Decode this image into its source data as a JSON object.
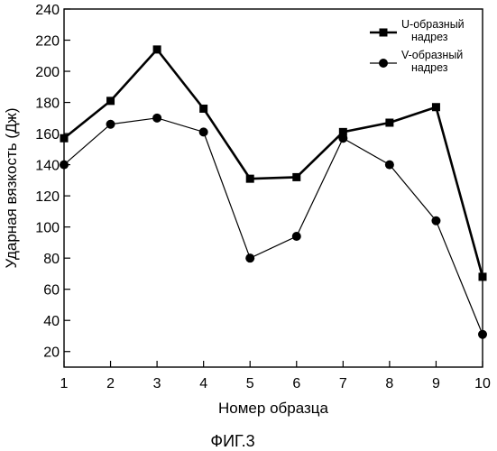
{
  "figure": {
    "caption": "ФИГ.3"
  },
  "chart_data": {
    "type": "line",
    "title": "",
    "xlabel": "Номер образца",
    "ylabel": "Ударная вязкость (Дж)",
    "x": [
      1,
      2,
      3,
      4,
      5,
      6,
      7,
      8,
      9,
      10
    ],
    "xlim": [
      1,
      10
    ],
    "ylim": [
      10,
      240
    ],
    "yticks": [
      20,
      40,
      60,
      80,
      100,
      120,
      140,
      160,
      180,
      200,
      220,
      240
    ],
    "xticks": [
      1,
      2,
      3,
      4,
      5,
      6,
      7,
      8,
      9,
      10
    ],
    "grid": false,
    "legend_position": "top-right",
    "series": [
      {
        "name": "U-образный надрез",
        "legend_lines": [
          "U-образный",
          "надрез"
        ],
        "marker": "square",
        "color": "#000000",
        "values": [
          157,
          181,
          214,
          176,
          131,
          132,
          161,
          167,
          177,
          68
        ]
      },
      {
        "name": "V-образный надрез",
        "legend_lines": [
          "V-образный",
          "надрез"
        ],
        "marker": "circle",
        "color": "#000000",
        "values": [
          140,
          166,
          170,
          161,
          80,
          94,
          157,
          140,
          104,
          31
        ]
      }
    ]
  }
}
